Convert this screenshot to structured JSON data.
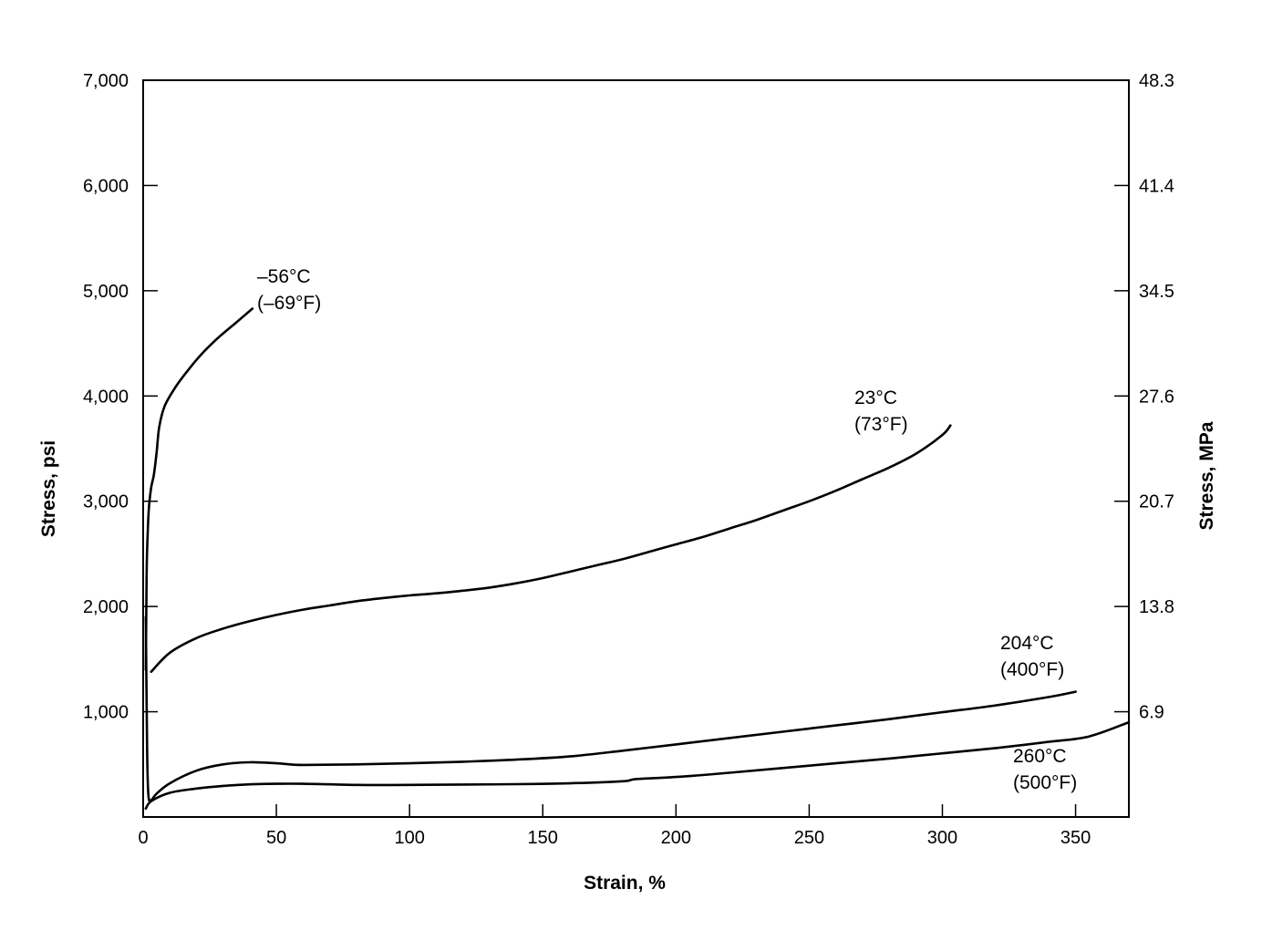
{
  "chart_data": {
    "type": "line",
    "xlabel": "Strain, %",
    "ylabel_left": "Stress, psi",
    "ylabel_right": "Stress, MPa",
    "xlim": [
      0,
      370
    ],
    "ylim": [
      0,
      7000
    ],
    "x_ticks": [
      0,
      50,
      100,
      150,
      200,
      250,
      300,
      350
    ],
    "x_tick_labels": [
      "0",
      "50",
      "100",
      "150",
      "200",
      "250",
      "300",
      "350"
    ],
    "y_ticks": [
      1000,
      2000,
      3000,
      4000,
      5000,
      6000,
      7000
    ],
    "y_tick_labels": [
      "1,000",
      "2,000",
      "3,000",
      "4,000",
      "5,000",
      "6,000",
      "7,000"
    ],
    "y_right_tick_labels": [
      "6.9",
      "13.8",
      "20.7",
      "27.6",
      "34.5",
      "41.4",
      "48.3"
    ],
    "grid": false,
    "series": [
      {
        "name": "–56°C (–69°F)",
        "label_lines": [
          "–56°C",
          "(–69°F)"
        ],
        "x": [
          1,
          1.3,
          1.7,
          2.2,
          3,
          4,
          5,
          6,
          8,
          12,
          17,
          22,
          28,
          35,
          41
        ],
        "y": [
          1400,
          2300,
          2700,
          2950,
          3130,
          3250,
          3450,
          3700,
          3900,
          4080,
          4250,
          4400,
          4550,
          4700,
          4830
        ]
      },
      {
        "name": "23°C (73°F)",
        "label_lines": [
          "23°C",
          "(73°F)"
        ],
        "x": [
          3,
          10,
          20,
          30,
          40,
          50,
          60,
          70,
          80,
          90,
          100,
          110,
          120,
          130,
          140,
          150,
          160,
          170,
          180,
          190,
          200,
          210,
          220,
          230,
          240,
          250,
          260,
          270,
          280,
          290,
          300,
          303
        ],
        "y": [
          1380,
          1560,
          1700,
          1790,
          1860,
          1920,
          1970,
          2010,
          2050,
          2080,
          2105,
          2125,
          2150,
          2180,
          2220,
          2270,
          2330,
          2390,
          2450,
          2520,
          2590,
          2660,
          2740,
          2820,
          2910,
          3000,
          3100,
          3210,
          3320,
          3450,
          3630,
          3720
        ]
      },
      {
        "name": "204°C (400°F)",
        "label_lines": [
          "204°C",
          "(400°F)"
        ],
        "x": [
          1,
          1.5,
          2,
          3,
          5,
          10,
          20,
          30,
          40,
          50,
          55,
          60,
          80,
          100,
          120,
          140,
          160,
          180,
          200,
          220,
          240,
          260,
          280,
          300,
          320,
          340,
          350
        ],
        "y": [
          1900,
          600,
          200,
          160,
          220,
          320,
          440,
          500,
          520,
          510,
          500,
          495,
          500,
          510,
          525,
          545,
          575,
          630,
          690,
          750,
          810,
          870,
          930,
          995,
          1060,
          1140,
          1190
        ]
      },
      {
        "name": "260°C (500°F)",
        "label_lines": [
          "260°C",
          "(500°F)"
        ],
        "x": [
          1,
          3,
          10,
          20,
          30,
          40,
          50,
          60,
          80,
          100,
          120,
          140,
          160,
          180,
          185,
          200,
          220,
          240,
          260,
          280,
          300,
          320,
          340,
          355,
          370
        ],
        "y": [
          80,
          150,
          230,
          270,
          295,
          310,
          315,
          315,
          305,
          305,
          308,
          312,
          320,
          340,
          360,
          380,
          420,
          465,
          510,
          555,
          605,
          655,
          715,
          765,
          900
        ]
      }
    ]
  }
}
